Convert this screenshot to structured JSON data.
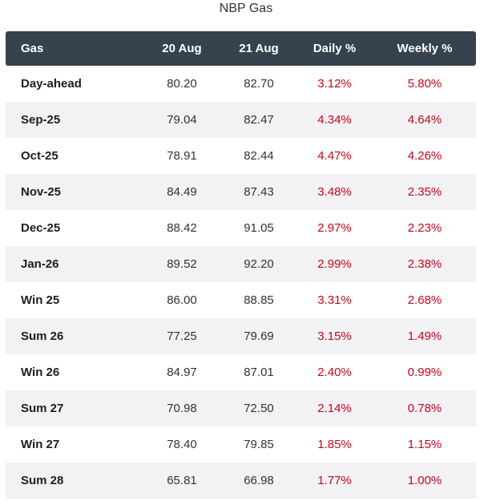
{
  "title": "NBP Gas",
  "columns": [
    "Gas",
    "20 Aug",
    "21 Aug",
    "Daily %",
    "Weekly %"
  ],
  "rows": [
    {
      "name": "Day-ahead",
      "prev": "80.20",
      "curr": "82.70",
      "daily": "3.12%",
      "weekly": "5.80%"
    },
    {
      "name": "Sep-25",
      "prev": "79.04",
      "curr": "82.47",
      "daily": "4.34%",
      "weekly": "4.64%"
    },
    {
      "name": "Oct-25",
      "prev": "78.91",
      "curr": "82.44",
      "daily": "4.47%",
      "weekly": "4.26%"
    },
    {
      "name": "Nov-25",
      "prev": "84.49",
      "curr": "87.43",
      "daily": "3.48%",
      "weekly": "2.35%"
    },
    {
      "name": "Dec-25",
      "prev": "88.42",
      "curr": "91.05",
      "daily": "2.97%",
      "weekly": "2.23%"
    },
    {
      "name": "Jan-26",
      "prev": "89.52",
      "curr": "92.20",
      "daily": "2.99%",
      "weekly": "2.38%"
    },
    {
      "name": "Win 25",
      "prev": "86.00",
      "curr": "88.85",
      "daily": "3.31%",
      "weekly": "2.68%"
    },
    {
      "name": "Sum 26",
      "prev": "77.25",
      "curr": "79.69",
      "daily": "3.15%",
      "weekly": "1.49%"
    },
    {
      "name": "Win 26",
      "prev": "84.97",
      "curr": "87.01",
      "daily": "2.40%",
      "weekly": "0.99%"
    },
    {
      "name": "Sum 27",
      "prev": "70.98",
      "curr": "72.50",
      "daily": "2.14%",
      "weekly": "0.78%"
    },
    {
      "name": "Win 27",
      "prev": "78.40",
      "curr": "79.85",
      "daily": "1.85%",
      "weekly": "1.15%"
    },
    {
      "name": "Sum 28",
      "prev": "65.81",
      "curr": "66.98",
      "daily": "1.77%",
      "weekly": "1.00%"
    }
  ],
  "colors": {
    "header_bg": "#36424e",
    "stripe_bg": "#f2f2f4",
    "change_text": "#d0021b"
  }
}
